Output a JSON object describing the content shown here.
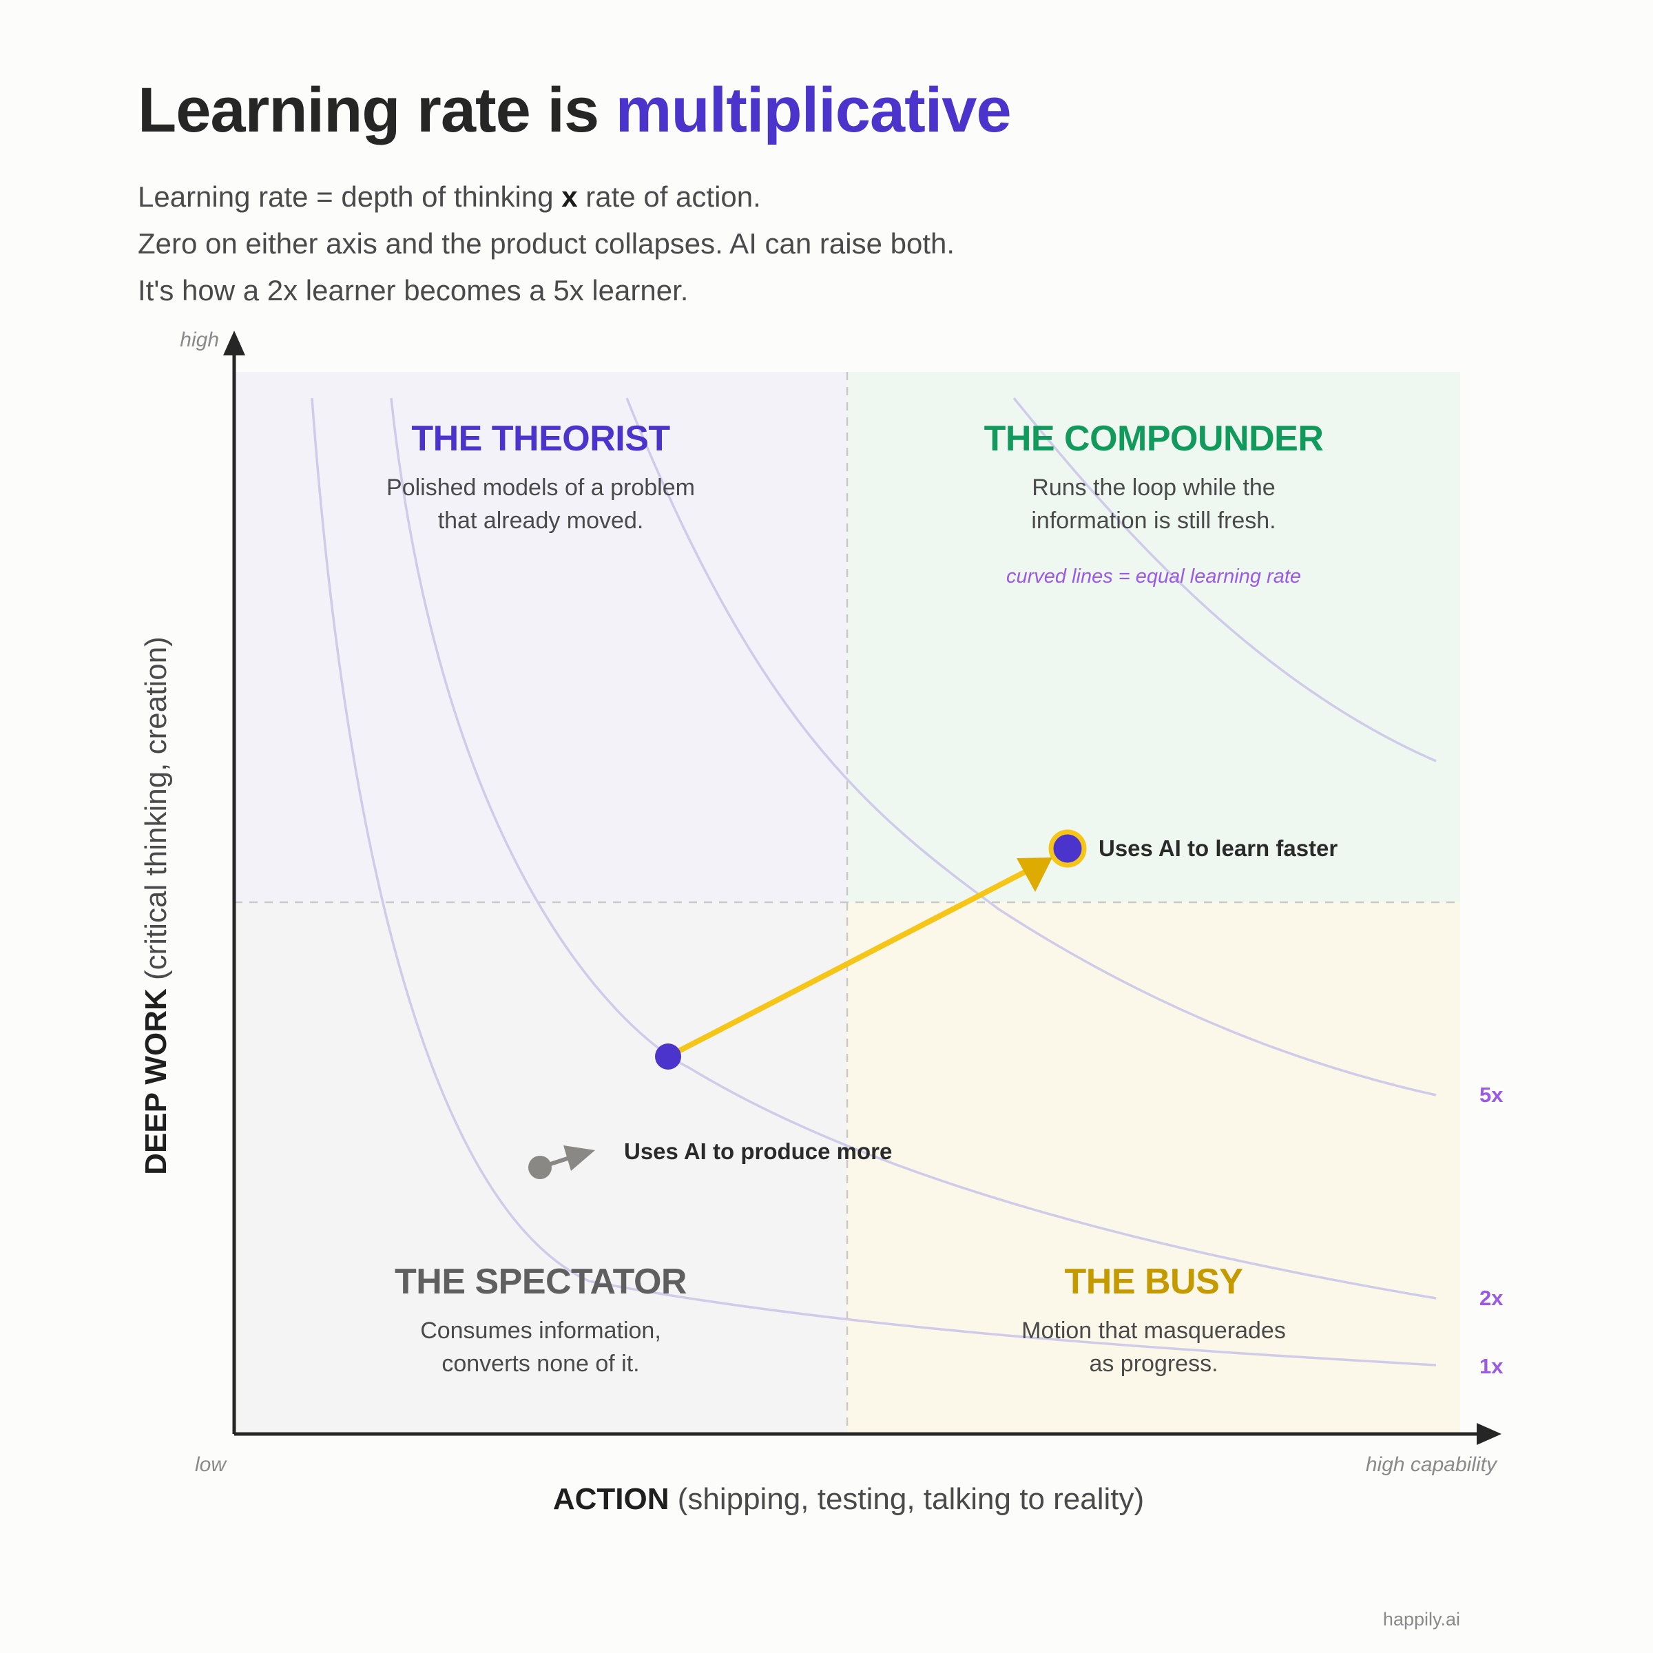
{
  "title": {
    "lead": "Learning rate is ",
    "accent": "multiplicative"
  },
  "subtitle": {
    "line1_before": "Learning rate = depth of thinking ",
    "line1_operator": "x",
    "line1_after": " rate of action.",
    "line2": "Zero on either axis and the product collapses. AI can raise both.",
    "line3": "It's how a 2x learner becomes a 5x learner."
  },
  "y_axis": {
    "title_strong": "DEEP WORK",
    "title_rest": " (critical thinking, creation)",
    "high_label": "high"
  },
  "x_axis": {
    "title_strong": "ACTION",
    "title_rest": " (shipping, testing, talking to reality)",
    "low_label": "low",
    "high_label": "high capability"
  },
  "quadrants": {
    "theorist": {
      "title": "THE THEORIST",
      "desc_line1": "Polished models of a problem",
      "desc_line2": "that already moved.",
      "color": "#4a34cc",
      "bg": "#f3f2f9"
    },
    "compounder": {
      "title": "THE COMPOUNDER",
      "desc_line1": "Runs the loop while the",
      "desc_line2": "information is still fresh.",
      "note": "curved lines = equal learning rate",
      "color": "#129a5c",
      "bg": "#eef8f1"
    },
    "spectator": {
      "title": "THE SPECTATOR",
      "desc_line1": "Consumes information,",
      "desc_line2": "converts none of it.",
      "color": "#5f5f5f",
      "bg": "#f4f4f4"
    },
    "busy": {
      "title": "THE BUSY",
      "desc_line1": "Motion that masquerades",
      "desc_line2": "as progress.",
      "color": "#c49a00",
      "bg": "#fbf8ea"
    }
  },
  "curves": {
    "line_color": "#cfcbe9",
    "labels": [
      "5x",
      "2x",
      "1x"
    ]
  },
  "points": {
    "learn_faster": {
      "label": "Uses AI to learn faster",
      "color": "#4a34cc",
      "ring": "#f5c518"
    },
    "produce_more": {
      "label": "Uses AI to produce more",
      "color": "#8a8885"
    },
    "start": {
      "color": "#4a34cc"
    }
  },
  "arrow_color": "#f5c518",
  "credit": "happily.ai"
}
